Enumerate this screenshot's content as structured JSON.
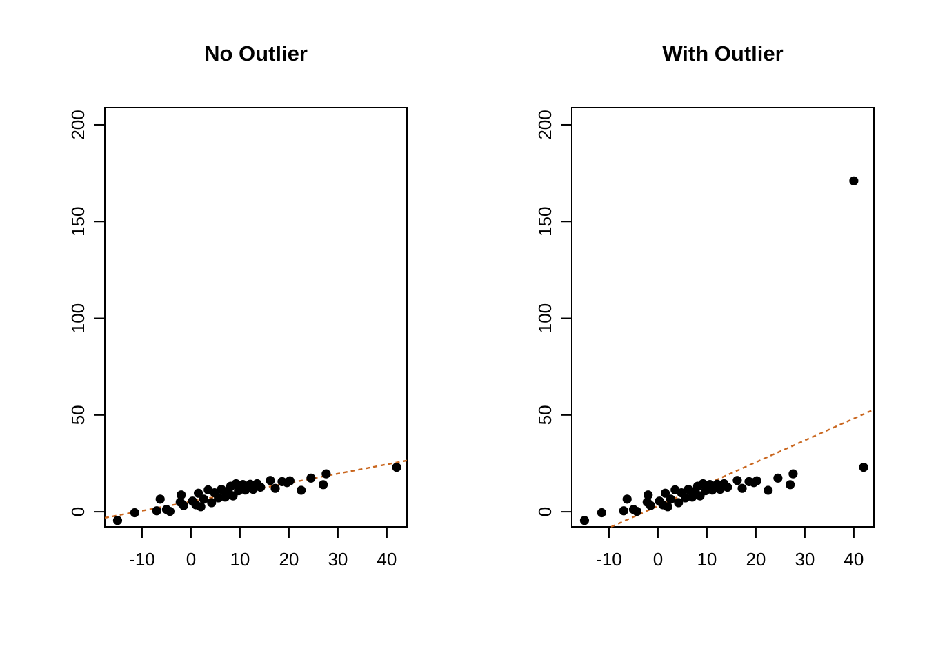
{
  "figure": {
    "background_color": "#FFFFFF",
    "point_color": "#000000",
    "line_color": "#C9661E",
    "axis_color": "#000000"
  },
  "chart_data": [
    {
      "type": "scatter",
      "title": "No Outlier",
      "xlabel": "",
      "ylabel": "",
      "x_ticks": [
        -10,
        0,
        10,
        20,
        30,
        40
      ],
      "y_ticks": [
        0,
        50,
        100,
        150,
        200
      ],
      "xlim": [
        -17.6,
        44.1
      ],
      "ylim": [
        -7.8,
        208.9
      ],
      "grid": false,
      "legend": false,
      "points": [
        [
          -15.0,
          -4.5
        ],
        [
          -11.5,
          -0.5
        ],
        [
          -7.0,
          0.5
        ],
        [
          -6.3,
          6.5
        ],
        [
          -5.0,
          1.2
        ],
        [
          -4.3,
          0.2
        ],
        [
          -2.0,
          8.7
        ],
        [
          -2.2,
          5.0
        ],
        [
          -1.5,
          3.2
        ],
        [
          0.3,
          5.5
        ],
        [
          1.0,
          3.6
        ],
        [
          1.5,
          9.6
        ],
        [
          2.0,
          2.6
        ],
        [
          2.6,
          6.5
        ],
        [
          3.5,
          11.3
        ],
        [
          4.2,
          4.7
        ],
        [
          4.8,
          9.8
        ],
        [
          5.6,
          7.2
        ],
        [
          6.2,
          11.6
        ],
        [
          7.0,
          7.6
        ],
        [
          7.6,
          10.7
        ],
        [
          8.1,
          13.2
        ],
        [
          8.6,
          8.2
        ],
        [
          9.2,
          14.5
        ],
        [
          9.7,
          10.9
        ],
        [
          10.1,
          12.6
        ],
        [
          10.6,
          14.1
        ],
        [
          11.1,
          11.2
        ],
        [
          11.6,
          12.7
        ],
        [
          12.1,
          14.2
        ],
        [
          12.7,
          11.6
        ],
        [
          13.5,
          14.5
        ],
        [
          14.2,
          12.7
        ],
        [
          16.2,
          16.2
        ],
        [
          17.2,
          12.1
        ],
        [
          18.6,
          15.6
        ],
        [
          19.6,
          15.1
        ],
        [
          20.2,
          16.0
        ],
        [
          22.5,
          11.1
        ],
        [
          24.5,
          17.4
        ],
        [
          27.0,
          14.0
        ],
        [
          27.6,
          19.6
        ],
        [
          42.0,
          23.0
        ]
      ],
      "regression_line": {
        "intercept": 5.3,
        "slope": 0.48,
        "style": "dashed"
      }
    },
    {
      "type": "scatter",
      "title": "With Outlier",
      "xlabel": "",
      "ylabel": "",
      "x_ticks": [
        -10,
        0,
        10,
        20,
        30,
        40
      ],
      "y_ticks": [
        0,
        50,
        100,
        150,
        200
      ],
      "xlim": [
        -17.6,
        44.1
      ],
      "ylim": [
        -7.8,
        208.9
      ],
      "grid": false,
      "legend": false,
      "outlier": [
        40.0,
        171.0
      ],
      "points": [
        [
          -15.0,
          -4.5
        ],
        [
          -11.5,
          -0.5
        ],
        [
          -7.0,
          0.5
        ],
        [
          -6.3,
          6.5
        ],
        [
          -5.0,
          1.2
        ],
        [
          -4.3,
          0.2
        ],
        [
          -2.0,
          8.7
        ],
        [
          -2.2,
          5.0
        ],
        [
          -1.5,
          3.2
        ],
        [
          0.3,
          5.5
        ],
        [
          1.0,
          3.6
        ],
        [
          1.5,
          9.6
        ],
        [
          2.0,
          2.6
        ],
        [
          2.6,
          6.5
        ],
        [
          3.5,
          11.3
        ],
        [
          4.2,
          4.7
        ],
        [
          4.8,
          9.8
        ],
        [
          5.6,
          7.2
        ],
        [
          6.2,
          11.6
        ],
        [
          7.0,
          7.6
        ],
        [
          7.6,
          10.7
        ],
        [
          8.1,
          13.2
        ],
        [
          8.6,
          8.2
        ],
        [
          9.2,
          14.5
        ],
        [
          9.7,
          10.9
        ],
        [
          10.1,
          12.6
        ],
        [
          10.6,
          14.1
        ],
        [
          11.1,
          11.2
        ],
        [
          11.6,
          12.7
        ],
        [
          12.1,
          14.2
        ],
        [
          12.7,
          11.6
        ],
        [
          13.5,
          14.5
        ],
        [
          14.2,
          12.7
        ],
        [
          16.2,
          16.2
        ],
        [
          17.2,
          12.1
        ],
        [
          18.6,
          15.6
        ],
        [
          19.6,
          15.1
        ],
        [
          20.2,
          16.0
        ],
        [
          22.5,
          11.1
        ],
        [
          24.5,
          17.4
        ],
        [
          27.0,
          14.0
        ],
        [
          27.6,
          19.6
        ],
        [
          40.0,
          171.0
        ],
        [
          42.0,
          23.0
        ]
      ],
      "regression_line": {
        "intercept": 3.0,
        "slope": 1.13,
        "style": "dashed"
      }
    }
  ]
}
